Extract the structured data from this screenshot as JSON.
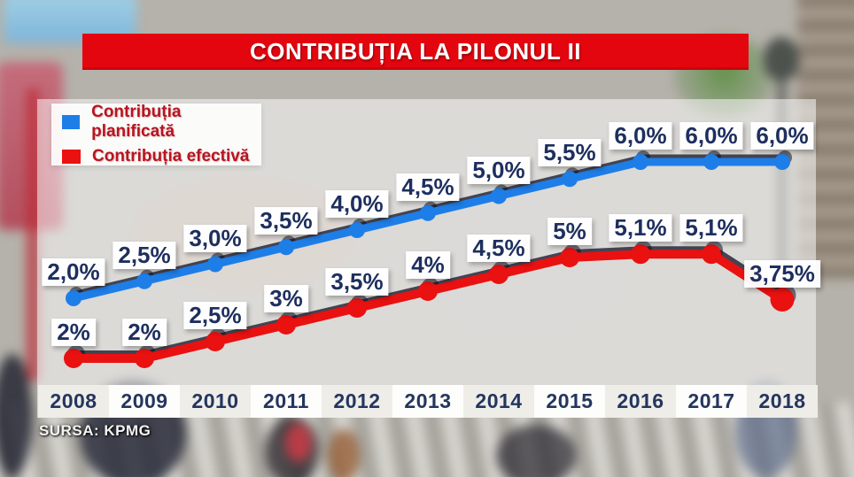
{
  "title": "CONTRIBUȚIA LA PILONUL II",
  "source": "SURSA: KPMG",
  "colors": {
    "banner_red": "#e4060f",
    "planned_blue": "#1e7ee8",
    "actual_red": "#ea1111",
    "label_navy": "#1e2f5e",
    "legend_text_red": "#b81420"
  },
  "legend": [
    {
      "label": "Contribuția planificată",
      "color": "#1e7ee8"
    },
    {
      "label": "Contribuția efectivă",
      "color": "#ea1111"
    }
  ],
  "chart_data": {
    "type": "line",
    "title": "CONTRIBUȚIA LA PILONUL II",
    "xlabel": "",
    "ylabel": "",
    "grid": false,
    "legend_position": "top-left",
    "categories": [
      "2008",
      "2009",
      "2010",
      "2011",
      "2012",
      "2013",
      "2014",
      "2015",
      "2016",
      "2017",
      "2018"
    ],
    "series": [
      {
        "name": "Contribuția planificată",
        "color": "#1e7ee8",
        "values": [
          2.0,
          2.5,
          3.0,
          3.5,
          4.0,
          4.5,
          5.0,
          5.5,
          6.0,
          6.0,
          6.0
        ],
        "labels": [
          "2,0%",
          "2,5%",
          "3,0%",
          "3,5%",
          "4,0%",
          "4,5%",
          "5,0%",
          "5,5%",
          "6,0%",
          "6,0%",
          "6,0%"
        ]
      },
      {
        "name": "Contribuția efectivă",
        "color": "#ea1111",
        "values": [
          2,
          2,
          2.5,
          3,
          3.5,
          4,
          4.5,
          5,
          5.1,
          5.1,
          3.75
        ],
        "labels": [
          "2%",
          "2%",
          "2,5%",
          "3%",
          "3,5%",
          "4%",
          "4,5%",
          "5%",
          "5,1%",
          "5,1%",
          "3,75%"
        ]
      }
    ]
  }
}
